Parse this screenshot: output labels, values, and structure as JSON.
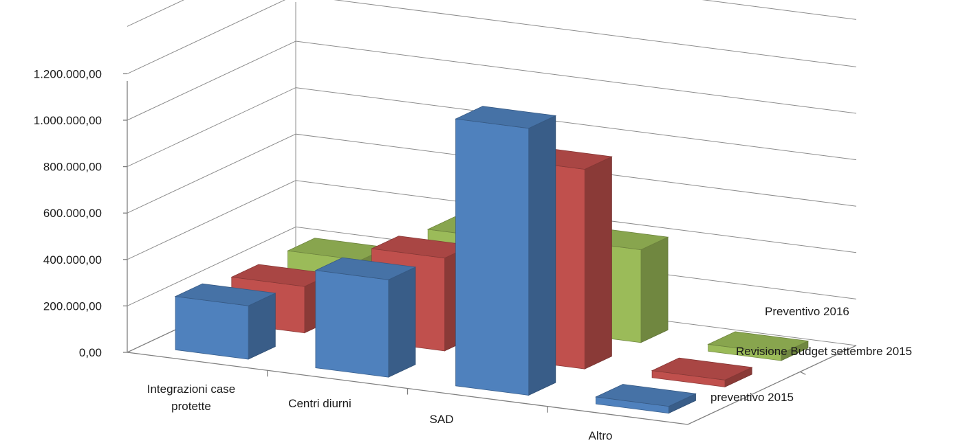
{
  "chart_data": {
    "type": "bar",
    "subtype": "3d-column",
    "categories": [
      "Integrazioni case protette",
      "Centri diurni",
      "SAD",
      "Altro"
    ],
    "series": [
      {
        "name": "preventivo 2015",
        "values": [
          230000,
          420000,
          1150000,
          30000
        ],
        "color": "#4f81bd"
      },
      {
        "name": "Revisione Budget settembre 2015",
        "values": [
          200000,
          400000,
          860000,
          30000
        ],
        "color": "#c0504d"
      },
      {
        "name": "Preventivo 2016",
        "values": [
          200000,
          370000,
          400000,
          30000
        ],
        "color": "#9bbb59"
      }
    ],
    "y_ticks": [
      "0,00",
      "200.000,00",
      "400.000,00",
      "600.000,00",
      "800.000,00",
      "1.000.000,00",
      "1.200.000,00"
    ],
    "ylim": [
      0,
      1200000
    ],
    "grid": true,
    "legend": "depth-axis labels on right",
    "title": "",
    "xlabel": "",
    "ylabel": ""
  }
}
